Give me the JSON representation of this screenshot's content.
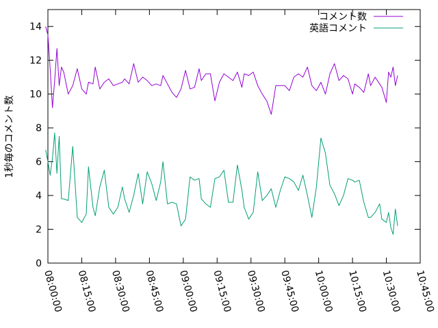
{
  "chart_data": {
    "type": "line",
    "title": "",
    "xlabel": "",
    "ylabel": "1秒毎のコメント数",
    "xlim": [
      "08:00:00",
      "10:45:00"
    ],
    "ylim": [
      0,
      15
    ],
    "x_ticks": [
      "08:00:00",
      "08:15:00",
      "08:30:00",
      "08:45:00",
      "09:00:00",
      "09:15:00",
      "09:30:00",
      "09:45:00",
      "10:00:00",
      "10:15:00",
      "10:30:00",
      "10:45:00"
    ],
    "y_ticks": [
      0,
      2,
      4,
      6,
      8,
      10,
      12,
      14
    ],
    "grid": false,
    "legend_position": "top-right",
    "series": [
      {
        "name": "コメント数",
        "color": "#9400d3",
        "x": [
          "07:59:00",
          "08:00:00",
          "08:01:00",
          "08:02:00",
          "08:03:00",
          "08:04:00",
          "08:05:00",
          "08:06:00",
          "08:07:00",
          "08:09:00",
          "08:11:00",
          "08:13:00",
          "08:15:00",
          "08:17:00",
          "08:18:00",
          "08:20:00",
          "08:21:00",
          "08:23:00",
          "08:25:00",
          "08:27:00",
          "08:29:00",
          "08:31:00",
          "08:33:00",
          "08:34:00",
          "08:36:00",
          "08:38:00",
          "08:40:00",
          "08:42:00",
          "08:44:00",
          "08:46:00",
          "08:48:00",
          "08:50:00",
          "08:51:00",
          "08:53:00",
          "08:55:00",
          "08:57:00",
          "08:59:00",
          "09:01:00",
          "09:03:00",
          "09:05:00",
          "09:07:00",
          "09:08:00",
          "09:10:00",
          "09:12:00",
          "09:14:00",
          "09:16:00",
          "09:18:00",
          "09:20:00",
          "09:22:00",
          "09:24:00",
          "09:26:00",
          "09:27:00",
          "09:29:00",
          "09:31:00",
          "09:33:00",
          "09:35:00",
          "09:37:00",
          "09:39:00",
          "09:41:00",
          "09:43:00",
          "09:45:00",
          "09:47:00",
          "09:49:00",
          "09:51:00",
          "09:53:00",
          "09:55:00",
          "09:57:00",
          "09:59:00",
          "10:01:00",
          "10:03:00",
          "10:05:00",
          "10:07:00",
          "10:09:00",
          "10:11:00",
          "10:13:00",
          "10:15:00",
          "10:16:00",
          "10:18:00",
          "10:20:00",
          "10:22:00",
          "10:23:00",
          "10:25:00",
          "10:27:00",
          "10:28:00",
          "10:30:00",
          "10:31:00",
          "10:32:00",
          "10:33:00",
          "10:34:00",
          "10:35:00"
        ],
        "y": [
          14.0,
          13.5,
          11.5,
          9.2,
          10.8,
          12.7,
          10.5,
          11.6,
          11.3,
          10.0,
          10.5,
          11.5,
          10.3,
          10.0,
          10.7,
          10.6,
          11.6,
          10.3,
          10.7,
          10.9,
          10.5,
          10.6,
          10.7,
          10.9,
          10.6,
          11.8,
          10.7,
          11.0,
          10.8,
          10.5,
          10.6,
          10.5,
          11.1,
          10.6,
          10.1,
          9.8,
          10.3,
          11.4,
          10.3,
          10.4,
          11.5,
          10.8,
          11.2,
          11.2,
          9.6,
          10.7,
          11.2,
          11.0,
          10.8,
          11.3,
          10.4,
          11.2,
          11.1,
          11.3,
          10.5,
          10.0,
          9.6,
          8.8,
          10.5,
          10.5,
          10.5,
          10.2,
          11.0,
          11.2,
          11.0,
          11.6,
          10.5,
          10.2,
          10.7,
          10.0,
          11.2,
          11.8,
          10.8,
          11.1,
          10.9,
          10.0,
          10.6,
          10.4,
          10.1,
          11.2,
          10.5,
          11.0,
          10.6,
          10.4,
          9.5,
          11.3,
          11.0,
          11.6,
          10.5,
          11.1
        ]
      },
      {
        "name": "英語コメント",
        "color": "#009e73",
        "x": [
          "07:59:00",
          "08:00:00",
          "08:01:00",
          "08:02:00",
          "08:03:00",
          "08:04:00",
          "08:05:00",
          "08:06:00",
          "08:07:00",
          "08:09:00",
          "08:11:00",
          "08:13:00",
          "08:15:00",
          "08:17:00",
          "08:18:00",
          "08:20:00",
          "08:21:00",
          "08:23:00",
          "08:25:00",
          "08:27:00",
          "08:29:00",
          "08:31:00",
          "08:33:00",
          "08:34:00",
          "08:36:00",
          "08:38:00",
          "08:40:00",
          "08:42:00",
          "08:44:00",
          "08:46:00",
          "08:48:00",
          "08:50:00",
          "08:51:00",
          "08:53:00",
          "08:55:00",
          "08:57:00",
          "08:59:00",
          "09:01:00",
          "09:03:00",
          "09:05:00",
          "09:07:00",
          "09:08:00",
          "09:10:00",
          "09:12:00",
          "09:14:00",
          "09:16:00",
          "09:18:00",
          "09:20:00",
          "09:22:00",
          "09:24:00",
          "09:26:00",
          "09:27:00",
          "09:29:00",
          "09:31:00",
          "09:33:00",
          "09:35:00",
          "09:37:00",
          "09:39:00",
          "09:41:00",
          "09:43:00",
          "09:45:00",
          "09:47:00",
          "09:49:00",
          "09:51:00",
          "09:53:00",
          "09:55:00",
          "09:57:00",
          "09:59:00",
          "10:01:00",
          "10:03:00",
          "10:05:00",
          "10:07:00",
          "10:09:00",
          "10:11:00",
          "10:13:00",
          "10:15:00",
          "10:16:00",
          "10:18:00",
          "10:20:00",
          "10:22:00",
          "10:23:00",
          "10:25:00",
          "10:27:00",
          "10:28:00",
          "10:30:00",
          "10:31:00",
          "10:32:00",
          "10:33:00",
          "10:34:00",
          "10:35:00"
        ],
        "y": [
          6.7,
          6.0,
          5.2,
          6.2,
          7.7,
          5.3,
          7.5,
          3.8,
          3.8,
          3.7,
          6.9,
          2.7,
          2.4,
          2.9,
          5.7,
          3.3,
          2.8,
          4.5,
          5.5,
          3.3,
          2.9,
          3.3,
          4.5,
          3.8,
          3.0,
          4.0,
          5.3,
          3.5,
          5.4,
          4.7,
          3.7,
          4.8,
          6.0,
          3.5,
          3.6,
          3.5,
          2.2,
          2.6,
          5.1,
          4.9,
          5.0,
          3.8,
          3.5,
          3.3,
          5.0,
          5.1,
          5.5,
          3.6,
          3.6,
          5.8,
          4.3,
          3.3,
          2.6,
          3.0,
          5.4,
          3.7,
          4.0,
          4.4,
          3.3,
          4.3,
          5.1,
          5.0,
          4.8,
          4.3,
          5.2,
          4.0,
          2.7,
          4.5,
          7.4,
          6.5,
          4.6,
          4.1,
          3.4,
          4.0,
          5.0,
          4.9,
          4.8,
          4.9,
          3.6,
          2.7,
          2.7,
          3.0,
          3.5,
          2.6,
          2.4,
          3.0,
          2.1,
          1.7,
          3.2,
          2.2
        ]
      }
    ]
  }
}
